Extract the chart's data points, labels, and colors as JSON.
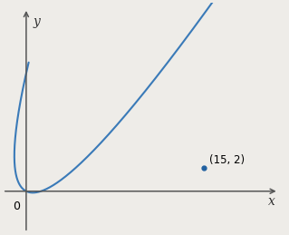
{
  "title": "",
  "xlabel": "x",
  "ylabel": "y",
  "point": [
    15,
    2
  ],
  "point_label": "(15, 2)",
  "t_min": -2.1,
  "t_max": 3.5,
  "curve_color": "#3a7ab8",
  "point_color": "#2060a0",
  "xlim": [
    -2,
    22
  ],
  "ylim": [
    -3.5,
    16
  ],
  "background_color": "#eeece8",
  "figsize": [
    3.19,
    2.59
  ],
  "dpi": 100
}
